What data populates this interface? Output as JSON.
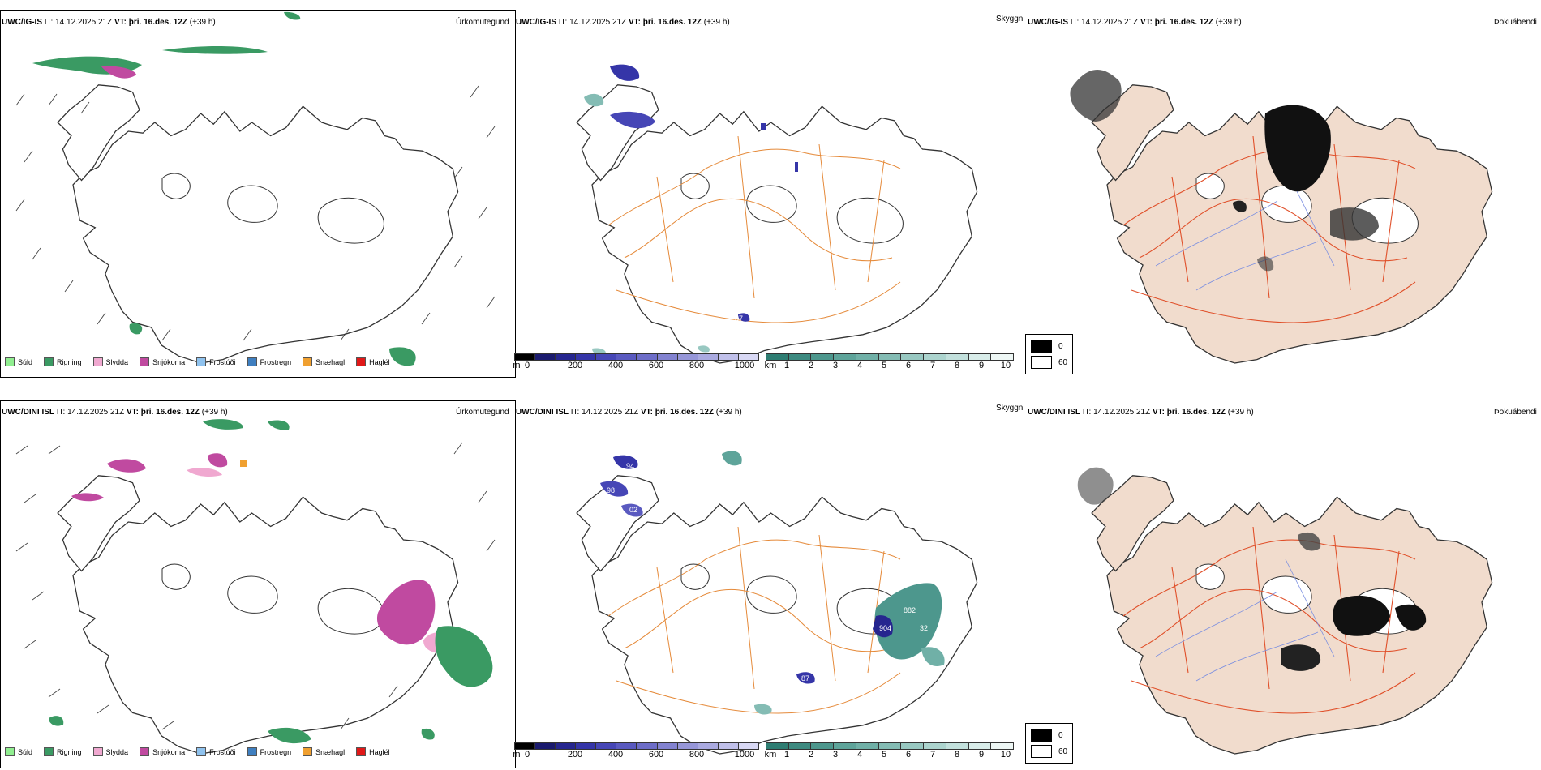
{
  "rows": [
    {
      "model": "UWC/IG-IS",
      "it_label": "IT:",
      "it_value": "14.12.2025 21Z",
      "vt_label": "VT:",
      "vt_value": "þri. 16.des. 12Z",
      "lead": "(+39 h)"
    },
    {
      "model": "UWC/DINI ISL",
      "it_label": "IT:",
      "it_value": "14.12.2025 21Z",
      "vt_label": "VT:",
      "vt_value": "þri. 16.des. 12Z",
      "lead": "(+39 h)"
    }
  ],
  "panel_titles": {
    "precip_type": "Úrkomutegund",
    "visibility": "Skyggni",
    "fog": "Þokuábendi"
  },
  "precip_legend": [
    {
      "label": "Súld",
      "color": "#90ee90"
    },
    {
      "label": "Rigning",
      "color": "#3a9a63"
    },
    {
      "label": "Slydda",
      "color": "#f0a8d0"
    },
    {
      "label": "Snjókoma",
      "color": "#c04aa0"
    },
    {
      "label": "Frostúði",
      "color": "#8fc2ee"
    },
    {
      "label": "Frostregn",
      "color": "#3f7fc0"
    },
    {
      "label": "Snæhagl",
      "color": "#f0a030"
    },
    {
      "label": "Haglél",
      "color": "#e01818"
    }
  ],
  "ceiling_bar": {
    "unit": "m",
    "ticks": [
      "0",
      "200",
      "400",
      "600",
      "800",
      "1000"
    ],
    "colors": [
      "#000000",
      "#1a1a6e",
      "#26268f",
      "#3535a8",
      "#4646b6",
      "#5a5ac0",
      "#6d6dc8",
      "#8282d0",
      "#9696d8",
      "#aaaae0",
      "#c0c0ea",
      "#d8d8f4"
    ]
  },
  "vis_bar": {
    "unit": "km",
    "ticks": [
      "1",
      "2",
      "3",
      "4",
      "5",
      "6",
      "7",
      "8",
      "9",
      "10"
    ],
    "colors": [
      "#2e7d72",
      "#3d8a80",
      "#4d978d",
      "#5ea49a",
      "#70b0a7",
      "#84bcb4",
      "#98c8c1",
      "#acd4ce",
      "#c2e0dc",
      "#d8ece9",
      "#eef7f5"
    ]
  },
  "fog_legend": [
    {
      "label": "0",
      "color": "#000000"
    },
    {
      "label": "60",
      "color": "#ffffff"
    }
  ],
  "ceiling_labels": {
    "row0": [
      "87"
    ],
    "row1": [
      "94",
      "98",
      "02",
      "904",
      "882",
      "32",
      "87"
    ]
  }
}
